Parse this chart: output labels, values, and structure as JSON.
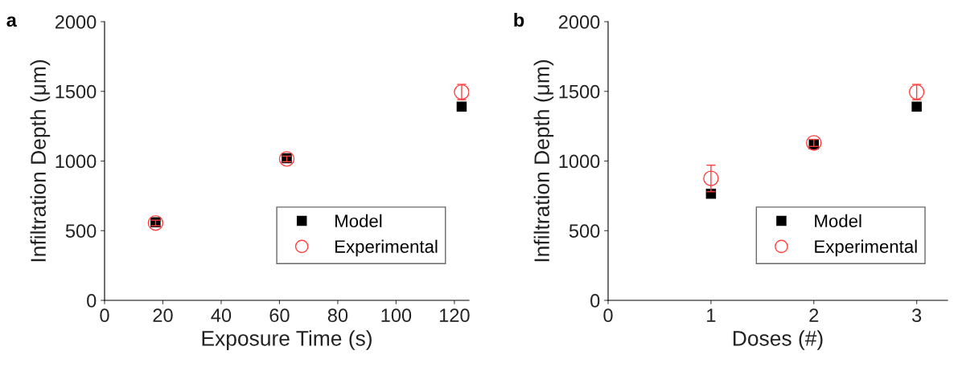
{
  "chart_data": [
    {
      "type": "scatter",
      "title": "a",
      "xlabel": "Exposure Time (s)",
      "ylabel": "Infiltration Depth (μm)",
      "xlim": [
        0,
        125
      ],
      "xticks": [
        0,
        20,
        40,
        60,
        80,
        100,
        120
      ],
      "ylim": [
        0,
        2000
      ],
      "yticks": [
        0,
        500,
        1000,
        1500,
        2000
      ],
      "grid": false,
      "legend": "bottom right",
      "series": [
        {
          "name": "Model",
          "color": "#000000",
          "marker": "square",
          "x": [
            17.5,
            62.5,
            122.5
          ],
          "values": [
            560,
            1020,
            1390
          ]
        },
        {
          "name": "Experimental",
          "color": "#ff4040",
          "marker": "circle",
          "x": [
            17.5,
            62.5,
            122.5
          ],
          "values": [
            555,
            1015,
            1495
          ],
          "errors": [
            20,
            20,
            55
          ]
        }
      ]
    },
    {
      "type": "scatter",
      "title": "b",
      "xlabel": "Doses (#)",
      "ylabel": "Infiltration Depth (μm)",
      "xlim": [
        0,
        3.3
      ],
      "xticks": [
        0,
        1,
        2,
        3
      ],
      "ylim": [
        0,
        2000
      ],
      "yticks": [
        0,
        500,
        1000,
        1500,
        2000
      ],
      "grid": false,
      "legend": "bottom right",
      "series": [
        {
          "name": "Model",
          "color": "#000000",
          "marker": "square",
          "x": [
            1,
            2,
            3
          ],
          "values": [
            765,
            1120,
            1390
          ]
        },
        {
          "name": "Experimental",
          "color": "#ff4040",
          "marker": "circle",
          "x": [
            1,
            2,
            3
          ],
          "values": [
            875,
            1130,
            1495
          ],
          "errors": [
            95,
            25,
            55
          ]
        }
      ]
    }
  ]
}
